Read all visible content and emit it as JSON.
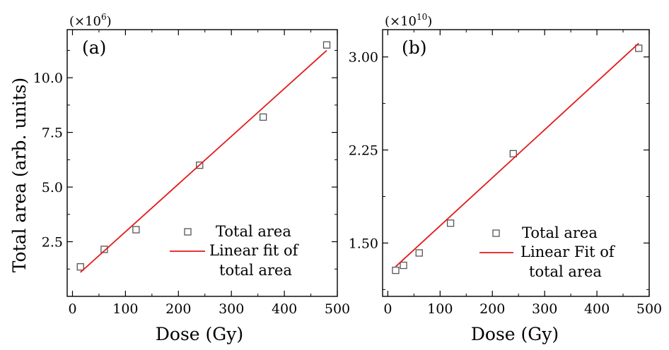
{
  "figure": {
    "shared_ylabel": "Total area (arb. units)"
  },
  "chart_data": [
    {
      "type": "scatter",
      "panel_label": "(a)",
      "multiplier_base": "(×10",
      "multiplier_exp": "6",
      "multiplier_close": ")",
      "xlabel": "Dose (Gy)",
      "ylabel": "Total area (arb. units)",
      "xlim": [
        -10,
        500
      ],
      "ylim": [
        0.0,
        12.2
      ],
      "xticks": [
        0,
        100,
        200,
        300,
        400,
        500
      ],
      "yticks": [
        2.5,
        5.0,
        7.5,
        10.0
      ],
      "ytick_labels": [
        "2.5",
        "5.0",
        "7.5",
        "10.0"
      ],
      "grid": false,
      "legend_position": "lower-right",
      "series": [
        {
          "name": "Total area",
          "kind": "scatter",
          "marker": "open-square",
          "color": "#555555",
          "x": [
            15,
            60,
            120,
            240,
            360,
            480
          ],
          "y": [
            1.35,
            2.15,
            3.05,
            6.0,
            8.2,
            11.5
          ]
        },
        {
          "name": "Linear fit of total area",
          "legend_lines": [
            "Linear fit of",
            "total area"
          ],
          "kind": "line",
          "color": "#e31a1c",
          "x": [
            15,
            480
          ],
          "y": [
            1.1,
            11.25
          ]
        }
      ]
    },
    {
      "type": "scatter",
      "panel_label": "(b)",
      "multiplier_base": "(×10",
      "multiplier_exp": "10",
      "multiplier_close": ")",
      "xlabel": "Dose (Gy)",
      "ylabel": "",
      "xlim": [
        -10,
        500
      ],
      "ylim": [
        1.07,
        3.22
      ],
      "xticks": [
        0,
        100,
        200,
        300,
        400,
        500
      ],
      "yticks": [
        1.5,
        2.25,
        3.0
      ],
      "ytick_labels": [
        "1.50",
        "2.25",
        "3.00"
      ],
      "grid": false,
      "legend_position": "lower-right",
      "series": [
        {
          "name": "Total area",
          "kind": "scatter",
          "marker": "open-square",
          "color": "#555555",
          "x": [
            15,
            30,
            60,
            120,
            240,
            480
          ],
          "y": [
            1.28,
            1.32,
            1.42,
            1.66,
            2.22,
            3.07
          ]
        },
        {
          "name": "Linear Fit of total area",
          "legend_lines": [
            "Linear Fit of",
            "total area"
          ],
          "kind": "line",
          "color": "#e31a1c",
          "x": [
            15,
            480
          ],
          "y": [
            1.31,
            3.11
          ]
        }
      ]
    }
  ]
}
